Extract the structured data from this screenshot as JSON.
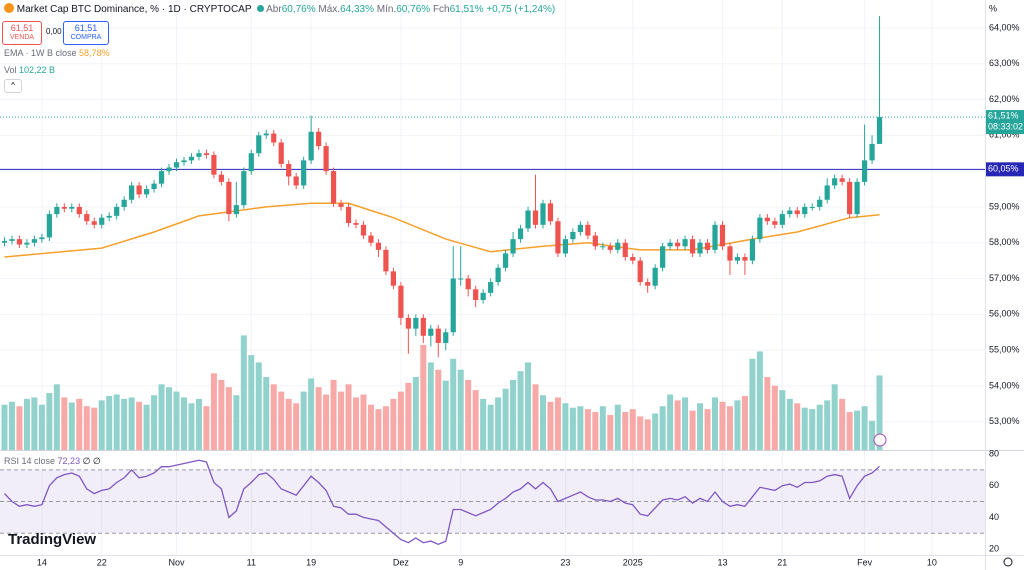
{
  "header": {
    "title": "Market Cap BTC Dominance, %",
    "interval": "1D",
    "source": "CRYPTOCAP",
    "ohlc": [
      {
        "name": "Abr",
        "text": "60,76%"
      },
      {
        "name": "Máx.",
        "text": "64,33%"
      },
      {
        "name": "Mín.",
        "text": "60,76%"
      },
      {
        "name": "Fch",
        "text": "61,51%"
      }
    ],
    "change": "+0,75 (+1,24%)",
    "sell": {
      "price": "61,51",
      "label": "VENDA"
    },
    "spread": "0,00",
    "buy": {
      "price": "61,51",
      "label": "COMPRA"
    },
    "rsi_extra": "∅ ∅",
    "watermark": "TradingView"
  },
  "chart_data": {
    "type": "candlestick",
    "colors": {
      "up": "#26a69a",
      "down": "#ef5350",
      "up_volume": "#92d2cc",
      "down_volume": "#f7a9a7"
    },
    "open": [
      58.0,
      58.05,
      58.1,
      57.95,
      58.0,
      58.1,
      58.15,
      58.8,
      59.0,
      58.95,
      59.0,
      58.8,
      58.6,
      58.5,
      58.7,
      58.75,
      59.0,
      59.2,
      59.6,
      59.35,
      59.5,
      59.65,
      60.0,
      60.1,
      60.25,
      60.3,
      60.4,
      60.5,
      60.45,
      59.9,
      59.7,
      58.8,
      59.05,
      60.0,
      60.5,
      61.0,
      61.05,
      60.8,
      60.2,
      59.85,
      59.6,
      60.3,
      61.1,
      60.7,
      60.0,
      59.1,
      59.0,
      58.55,
      58.5,
      58.2,
      58.0,
      57.8,
      57.2,
      56.8,
      55.9,
      55.6,
      55.9,
      55.4,
      55.6,
      55.2,
      55.5,
      57.0,
      57.0,
      56.7,
      56.4,
      56.6,
      56.9,
      57.3,
      57.7,
      58.1,
      58.4,
      58.9,
      58.5,
      59.1,
      58.6,
      57.7,
      58.1,
      58.3,
      58.5,
      58.2,
      57.9,
      57.9,
      57.8,
      58.0,
      57.6,
      57.5,
      56.9,
      56.8,
      57.3,
      57.9,
      58.0,
      57.9,
      58.1,
      57.7,
      58.0,
      57.8,
      58.5,
      57.9,
      57.5,
      57.6,
      57.5,
      58.1,
      58.7,
      58.6,
      58.5,
      58.8,
      58.9,
      58.8,
      59.0,
      59.0,
      59.2,
      59.6,
      59.8,
      59.7,
      58.8,
      59.7,
      60.3,
      60.76
    ],
    "high": [
      58.15,
      58.2,
      58.2,
      58.1,
      58.2,
      58.25,
      58.9,
      59.1,
      59.1,
      59.1,
      59.1,
      58.9,
      58.7,
      58.8,
      58.85,
      59.1,
      59.3,
      59.7,
      59.7,
      59.6,
      59.75,
      60.1,
      60.2,
      60.35,
      60.4,
      60.5,
      60.6,
      60.6,
      60.55,
      60.0,
      59.8,
      59.7,
      60.1,
      60.6,
      61.1,
      61.15,
      61.15,
      60.9,
      60.3,
      59.95,
      60.4,
      61.55,
      61.2,
      60.8,
      60.1,
      59.2,
      59.1,
      58.65,
      58.6,
      58.3,
      58.1,
      57.9,
      57.3,
      56.9,
      56.0,
      56.0,
      56.0,
      55.7,
      55.7,
      55.6,
      57.9,
      57.9,
      57.1,
      56.8,
      56.7,
      57.0,
      57.4,
      57.8,
      58.3,
      58.5,
      59.0,
      59.9,
      59.2,
      59.2,
      58.7,
      58.2,
      58.4,
      58.6,
      58.6,
      58.3,
      58.0,
      58.0,
      58.1,
      58.1,
      57.7,
      57.6,
      57.0,
      57.4,
      58.0,
      58.1,
      58.1,
      58.2,
      58.2,
      58.1,
      58.1,
      58.6,
      58.6,
      58.0,
      57.7,
      57.7,
      58.2,
      58.8,
      58.8,
      58.7,
      58.9,
      59.0,
      59.0,
      59.1,
      59.1,
      59.3,
      59.8,
      59.9,
      59.9,
      59.8,
      59.8,
      61.3,
      61.0,
      64.33
    ],
    "low": [
      57.9,
      57.95,
      57.85,
      57.85,
      57.9,
      58.0,
      58.05,
      58.7,
      58.85,
      58.85,
      58.7,
      58.5,
      58.4,
      58.4,
      58.6,
      58.65,
      58.9,
      59.1,
      59.25,
      59.25,
      59.4,
      59.55,
      59.9,
      60.0,
      60.15,
      60.2,
      60.3,
      60.35,
      59.8,
      59.6,
      58.6,
      58.7,
      58.95,
      59.9,
      60.4,
      60.9,
      60.7,
      60.1,
      59.6,
      59.5,
      59.5,
      60.2,
      60.6,
      59.9,
      59.0,
      58.9,
      58.45,
      58.4,
      58.1,
      57.9,
      57.6,
      57.1,
      56.7,
      55.7,
      54.9,
      55.4,
      55.2,
      55.1,
      54.8,
      55.0,
      55.4,
      56.8,
      56.5,
      56.2,
      56.3,
      56.5,
      56.8,
      57.2,
      57.6,
      58.0,
      58.3,
      58.4,
      58.4,
      58.5,
      57.6,
      57.6,
      58.0,
      58.2,
      58.1,
      57.8,
      57.8,
      57.7,
      57.7,
      57.5,
      57.4,
      56.8,
      56.6,
      56.7,
      57.2,
      57.8,
      57.8,
      57.8,
      57.6,
      57.6,
      57.7,
      57.7,
      57.8,
      57.1,
      57.4,
      57.1,
      57.4,
      58.0,
      58.5,
      58.4,
      58.4,
      58.7,
      58.7,
      58.7,
      58.9,
      58.9,
      59.1,
      59.5,
      59.6,
      58.7,
      58.7,
      59.6,
      60.2,
      60.76
    ],
    "close": [
      58.05,
      58.1,
      57.95,
      58.0,
      58.1,
      58.15,
      58.8,
      59.0,
      58.95,
      59.0,
      58.8,
      58.6,
      58.5,
      58.7,
      58.75,
      59.0,
      59.2,
      59.6,
      59.35,
      59.5,
      59.65,
      60.0,
      60.1,
      60.25,
      60.3,
      60.4,
      60.5,
      60.45,
      59.9,
      59.7,
      58.8,
      59.05,
      60.0,
      60.5,
      61.0,
      61.05,
      60.8,
      60.2,
      59.85,
      59.6,
      60.3,
      61.1,
      60.7,
      60.0,
      59.1,
      59.0,
      58.55,
      58.5,
      58.2,
      58.0,
      57.8,
      57.2,
      56.8,
      55.9,
      55.6,
      55.9,
      55.4,
      55.6,
      55.2,
      55.5,
      57.0,
      57.0,
      56.7,
      56.4,
      56.6,
      56.9,
      57.3,
      57.7,
      58.1,
      58.4,
      58.9,
      58.5,
      59.1,
      58.6,
      57.7,
      58.1,
      58.3,
      58.5,
      58.2,
      57.9,
      57.9,
      57.8,
      58.0,
      57.6,
      57.5,
      56.9,
      56.8,
      57.3,
      57.9,
      58.0,
      57.9,
      58.1,
      57.7,
      58.0,
      57.8,
      58.5,
      57.9,
      57.5,
      57.6,
      57.5,
      58.1,
      58.7,
      58.6,
      58.5,
      58.8,
      58.9,
      58.8,
      59.0,
      59.0,
      59.2,
      59.6,
      59.8,
      59.7,
      58.8,
      59.7,
      60.3,
      60.76,
      61.51
    ],
    "xlim": [
      -0.6,
      131.1
    ],
    "xticks": [
      {
        "value": 5,
        "label": "14"
      },
      {
        "value": 13,
        "label": "22"
      },
      {
        "value": 23,
        "label": "Nov"
      },
      {
        "value": 33,
        "label": "11"
      },
      {
        "value": 41,
        "label": "19"
      },
      {
        "value": 53,
        "label": "Dez"
      },
      {
        "value": 61,
        "label": "9"
      },
      {
        "value": 75,
        "label": "23"
      },
      {
        "value": 84,
        "label": "2025"
      },
      {
        "value": 96,
        "label": "13"
      },
      {
        "value": 104,
        "label": "21"
      },
      {
        "value": 115,
        "label": "Fev"
      },
      {
        "value": 124,
        "label": "10"
      }
    ],
    "ylim": [
      52.21,
      64.78
    ],
    "yticks": [
      {
        "value": 53,
        "label": "53,00%"
      },
      {
        "value": 54,
        "label": "54,00%"
      },
      {
        "value": 55,
        "label": "55,00%"
      },
      {
        "value": 56,
        "label": "56,00%"
      },
      {
        "value": 57,
        "label": "57,00%"
      },
      {
        "value": 58,
        "label": "58,00%"
      },
      {
        "value": 59,
        "label": "59,00%"
      },
      {
        "value": 60,
        "label": "60,00%"
      },
      {
        "value": 61,
        "label": "61,00%"
      },
      {
        "value": 62,
        "label": "62,00%"
      },
      {
        "value": 63,
        "label": "63,00%"
      },
      {
        "value": 64,
        "label": "64,00%"
      }
    ],
    "y_unit": "%",
    "grid": true,
    "price_line": {
      "value": 61.51,
      "label": "61,51%",
      "countdown": "08:33:02",
      "color": "#26a69a"
    },
    "hline": {
      "value": 60.05,
      "label": "60,05%",
      "color": "#2727b5"
    },
    "ema": {
      "name": "EMA · 1W B close",
      "color": "#f5a02a",
      "value_label": "58,78%",
      "x": [
        0,
        13,
        20,
        26,
        35,
        41,
        46,
        52,
        59,
        65,
        72,
        78,
        85,
        92,
        100,
        106,
        113,
        117
      ],
      "values": [
        57.6,
        57.85,
        58.3,
        58.75,
        59.0,
        59.1,
        59.1,
        58.7,
        58.1,
        57.75,
        57.9,
        58.0,
        57.8,
        57.8,
        58.1,
        58.3,
        58.7,
        58.78
      ]
    },
    "volume": {
      "name": "Vol",
      "value_label": "102,22 B",
      "values": [
        62,
        66,
        60,
        70,
        72,
        62,
        78,
        90,
        72,
        65,
        70,
        60,
        58,
        68,
        74,
        76,
        70,
        72,
        66,
        62,
        75,
        90,
        86,
        80,
        72,
        64,
        70,
        60,
        105,
        96,
        86,
        75,
        157,
        130,
        120,
        100,
        90,
        80,
        70,
        64,
        80,
        98,
        86,
        76,
        96,
        80,
        90,
        72,
        76,
        62,
        56,
        60,
        70,
        80,
        92,
        100,
        144,
        120,
        110,
        95,
        125,
        110,
        96,
        82,
        70,
        62,
        72,
        84,
        96,
        108,
        120,
        90,
        75,
        66,
        72,
        64,
        58,
        60,
        56,
        52,
        60,
        48,
        62,
        52,
        56,
        46,
        42,
        50,
        60,
        76,
        68,
        72,
        54,
        64,
        56,
        72,
        66,
        60,
        68,
        74,
        125,
        135,
        100,
        88,
        82,
        70,
        64,
        58,
        56,
        62,
        68,
        90,
        70,
        52,
        54,
        60,
        40,
        102.22
      ]
    },
    "rsi": {
      "name": "RSI 14 close",
      "value_label": "72,23",
      "color": "#7e57c2",
      "ylim": [
        16.25,
        81.9
      ],
      "yticks": [
        20,
        40,
        60,
        80
      ],
      "levels": [
        30,
        50,
        70
      ],
      "values": [
        55,
        50,
        47,
        48,
        47,
        48,
        60,
        65,
        67,
        68,
        66,
        58,
        55,
        57,
        58,
        62,
        65,
        70,
        65,
        66,
        68,
        72,
        72,
        73,
        74,
        75,
        76,
        75,
        62,
        58,
        40,
        44,
        58,
        62,
        67,
        68,
        64,
        58,
        56,
        54,
        60,
        66,
        62,
        57,
        47,
        46,
        42,
        42,
        40,
        39,
        38,
        34,
        30,
        26,
        24,
        27,
        24,
        25,
        23,
        25,
        45,
        45,
        43,
        41,
        43,
        45,
        49,
        52,
        56,
        58,
        62,
        58,
        62,
        58,
        50,
        52,
        54,
        56,
        53,
        51,
        51,
        50,
        52,
        49,
        48,
        42,
        41,
        46,
        51,
        52,
        51,
        53,
        49,
        52,
        50,
        56,
        50,
        47,
        48,
        47,
        53,
        59,
        58,
        57,
        60,
        61,
        59,
        62,
        62,
        63,
        66,
        67,
        66,
        52,
        60,
        66,
        68,
        72.23
      ]
    }
  }
}
